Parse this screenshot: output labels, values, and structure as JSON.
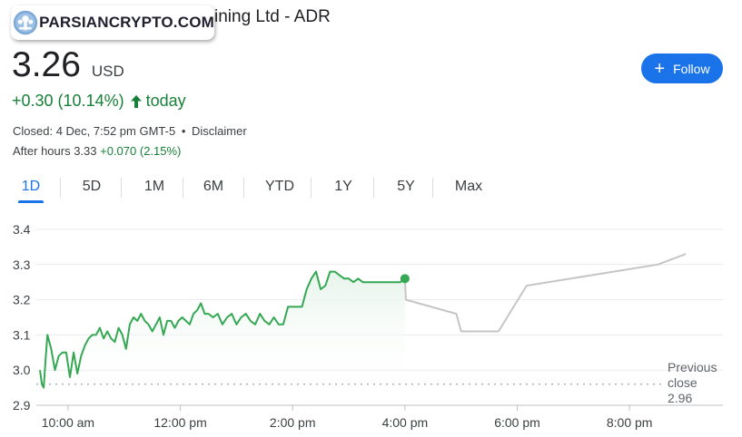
{
  "header": {
    "title": "ining Ltd - ADR",
    "watermark_text": "PARSIANCRYPTO.COM"
  },
  "quote": {
    "price": "3.26",
    "currency": "USD",
    "change": "+0.30 (10.14%)",
    "change_period": "today",
    "closed_label": "Closed: 4 Dec, 7:52 pm GMT-5",
    "separator": "•",
    "disclaimer": "Disclaimer",
    "after_hours_label": "After hours 3.33",
    "after_hours_change": "+0.070 (2.15%)"
  },
  "follow_button": {
    "label": "Follow",
    "icon": "plus-icon"
  },
  "tabs": [
    {
      "label": "1D",
      "active": true
    },
    {
      "label": "5D",
      "active": false
    },
    {
      "label": "1M",
      "active": false
    },
    {
      "label": "6M",
      "active": false
    },
    {
      "label": "YTD",
      "active": false
    },
    {
      "label": "1Y",
      "active": false
    },
    {
      "label": "5Y",
      "active": false
    },
    {
      "label": "Max",
      "active": false
    }
  ],
  "previous_close": {
    "line1": "Previous",
    "line2": "close",
    "value": "2.96"
  },
  "colors": {
    "accent": "#1a73e8",
    "positive": "#188038",
    "line": "#34a853",
    "after_hours_line": "#c5c5c5"
  },
  "chart_data": {
    "type": "line",
    "ylim": [
      2.9,
      3.4
    ],
    "yticks": [
      "3.4",
      "3.3",
      "3.2",
      "3.1",
      "3.0",
      "2.9"
    ],
    "xticks": [
      "10:00 am",
      "12:00 pm",
      "2:00 pm",
      "4:00 pm",
      "6:00 pm",
      "8:00 pm"
    ],
    "xlim": [
      "9:30",
      "21:00"
    ],
    "previous_close": 2.96,
    "series": [
      {
        "name": "",
        "session": "regular",
        "x": [
          "9:30",
          "9:32",
          "9:34",
          "9:36",
          "9:38",
          "9:42",
          "9:46",
          "9:50",
          "9:54",
          "9:58",
          "10:02",
          "10:06",
          "10:10",
          "10:14",
          "10:18",
          "10:22",
          "10:26",
          "10:30",
          "10:34",
          "10:38",
          "10:42",
          "10:46",
          "10:50",
          "10:54",
          "10:58",
          "11:02",
          "11:06",
          "11:10",
          "11:14",
          "11:18",
          "11:22",
          "11:26",
          "11:30",
          "11:34",
          "11:38",
          "11:42",
          "11:46",
          "11:50",
          "11:54",
          "11:58",
          "12:02",
          "12:06",
          "12:10",
          "12:14",
          "12:18",
          "12:22",
          "12:26",
          "12:30",
          "12:35",
          "12:40",
          "12:45",
          "12:50",
          "12:55",
          "13:00",
          "13:05",
          "13:10",
          "13:15",
          "13:20",
          "13:25",
          "13:30",
          "13:35",
          "13:40",
          "13:45",
          "13:50",
          "13:55",
          "14:00",
          "14:05",
          "14:10",
          "14:15",
          "14:20",
          "14:25",
          "14:30",
          "14:35",
          "14:40",
          "14:45",
          "14:50",
          "14:55",
          "15:00",
          "15:05",
          "15:10",
          "15:15",
          "15:20",
          "15:25",
          "15:30",
          "15:35",
          "15:40",
          "15:45",
          "15:50",
          "15:55",
          "16:00"
        ],
        "values": [
          3.0,
          2.96,
          2.95,
          3.03,
          3.1,
          3.06,
          3.0,
          3.04,
          3.05,
          3.05,
          2.98,
          3.05,
          2.99,
          3.04,
          3.07,
          3.09,
          3.1,
          3.1,
          3.12,
          3.09,
          3.11,
          3.09,
          3.08,
          3.12,
          3.1,
          3.06,
          3.13,
          3.15,
          3.14,
          3.16,
          3.14,
          3.13,
          3.11,
          3.13,
          3.15,
          3.1,
          3.14,
          3.14,
          3.12,
          3.14,
          3.15,
          3.14,
          3.13,
          3.16,
          3.17,
          3.19,
          3.16,
          3.16,
          3.15,
          3.16,
          3.13,
          3.15,
          3.16,
          3.13,
          3.15,
          3.16,
          3.14,
          3.13,
          3.16,
          3.14,
          3.13,
          3.15,
          3.13,
          3.13,
          3.18,
          3.18,
          3.18,
          3.18,
          3.23,
          3.26,
          3.28,
          3.23,
          3.24,
          3.28,
          3.28,
          3.27,
          3.26,
          3.26,
          3.25,
          3.26,
          3.25,
          3.25,
          3.25,
          3.25,
          3.25,
          3.25,
          3.25,
          3.25,
          3.25,
          3.26
        ]
      },
      {
        "name": "",
        "session": "after-hours",
        "x": [
          "16:00",
          "16:01",
          "16:55",
          "17:00",
          "17:25",
          "17:40",
          "18:10",
          "20:30",
          "21:00"
        ],
        "values": [
          3.26,
          3.2,
          3.16,
          3.11,
          3.11,
          3.11,
          3.24,
          3.3,
          3.33
        ]
      }
    ]
  }
}
